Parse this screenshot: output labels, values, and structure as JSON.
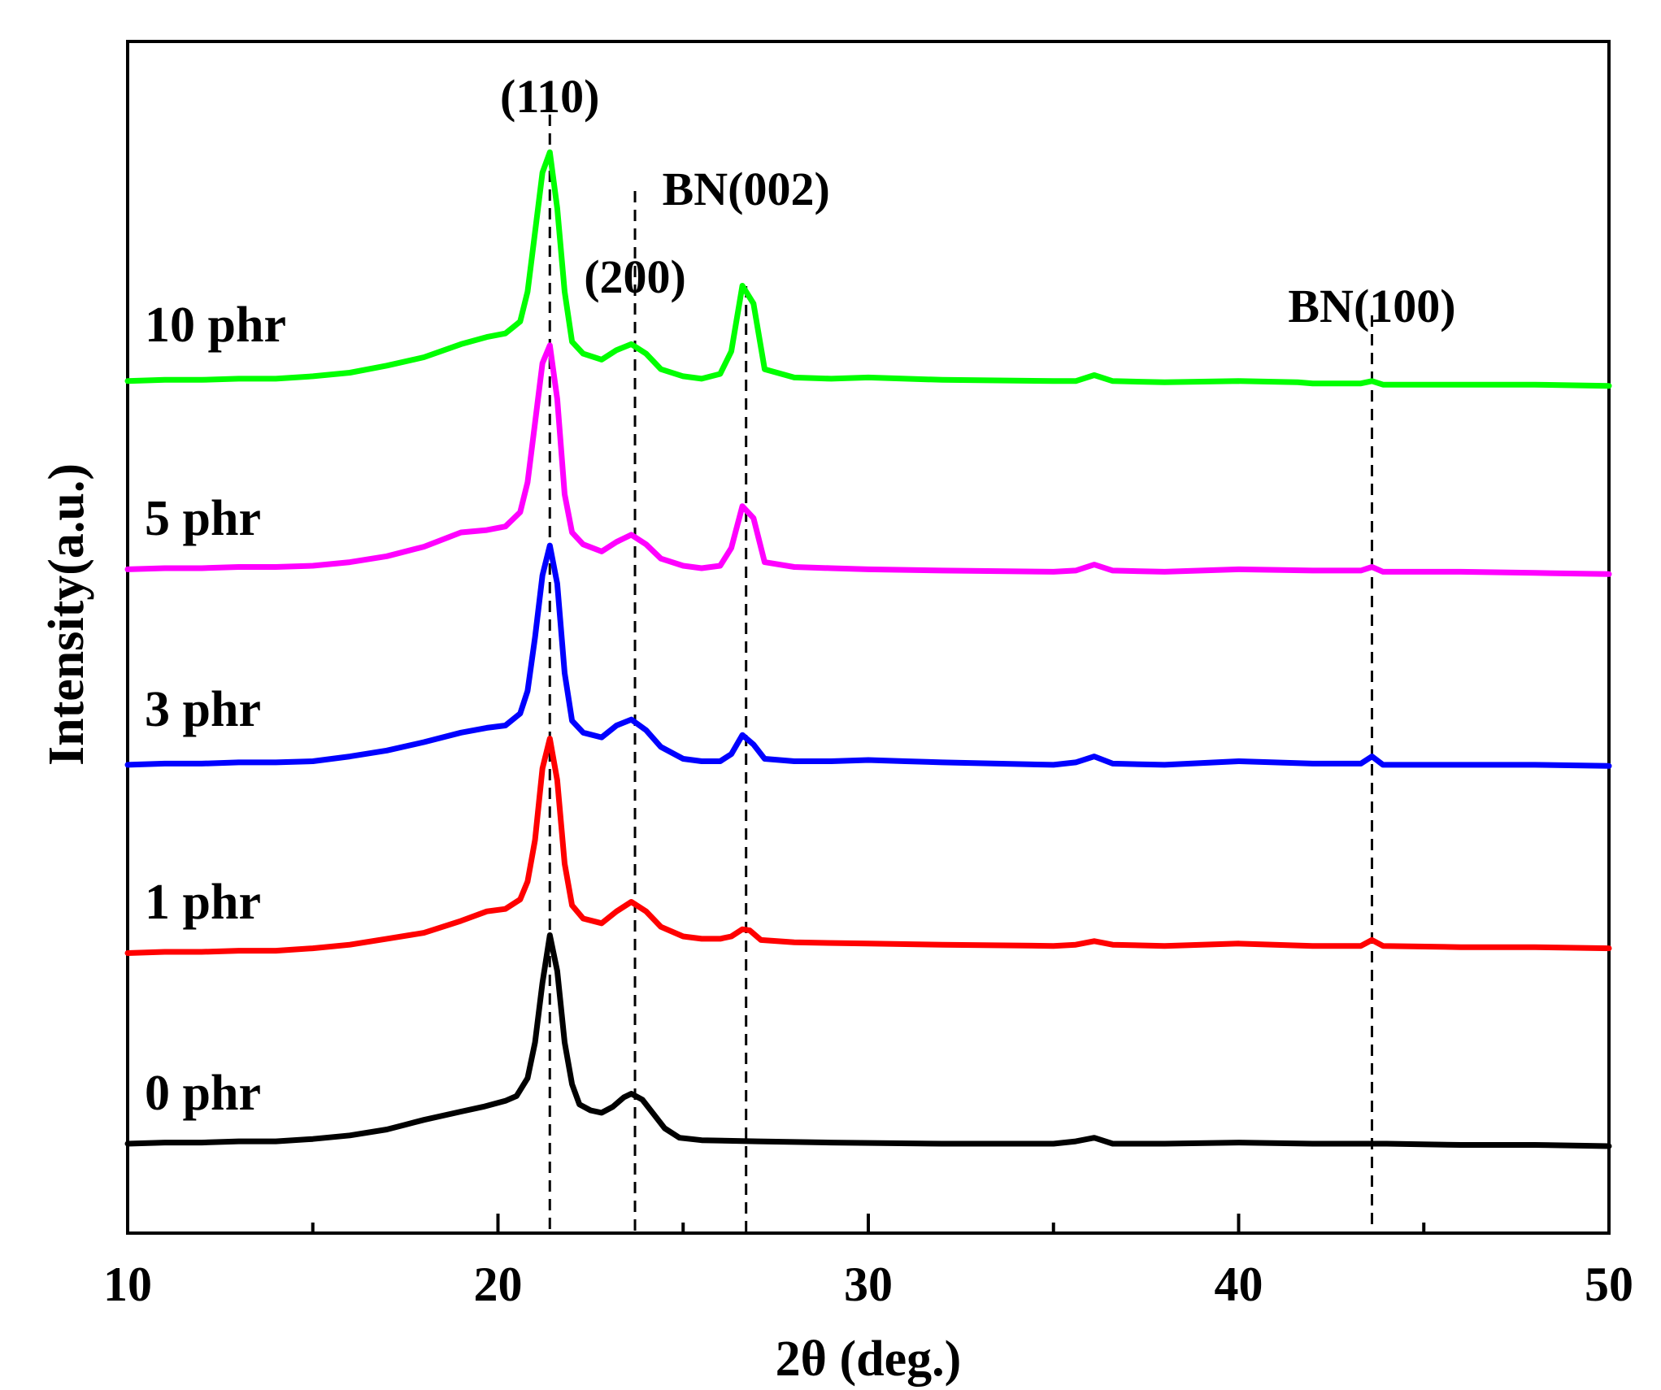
{
  "chart_data": {
    "type": "line",
    "title": "",
    "xlabel": "2θ (deg.)",
    "ylabel": "Intensity(a.u.)",
    "xlim": [
      10,
      50
    ],
    "ylim": [
      0,
      1.0
    ],
    "grid": false,
    "x_ticks": [
      10,
      20,
      30,
      40,
      50
    ],
    "x_tick_labels": [
      "10",
      "20",
      "30",
      "40",
      "50"
    ],
    "x_minor_ticks": [
      15,
      25,
      35,
      45
    ],
    "series": [
      {
        "name": "0 phr",
        "color": "#000000",
        "points": [
          [
            10,
            0.075
          ],
          [
            11,
            0.076
          ],
          [
            12,
            0.076
          ],
          [
            13,
            0.077
          ],
          [
            14,
            0.077
          ],
          [
            15,
            0.079
          ],
          [
            16,
            0.082
          ],
          [
            17,
            0.087
          ],
          [
            17.5,
            0.091
          ],
          [
            18,
            0.095
          ],
          [
            19,
            0.102
          ],
          [
            19.6,
            0.106
          ],
          [
            20.2,
            0.111
          ],
          [
            20.5,
            0.115
          ],
          [
            20.8,
            0.13
          ],
          [
            21.0,
            0.16
          ],
          [
            21.2,
            0.21
          ],
          [
            21.4,
            0.25
          ],
          [
            21.6,
            0.22
          ],
          [
            21.8,
            0.16
          ],
          [
            22.0,
            0.125
          ],
          [
            22.2,
            0.108
          ],
          [
            22.5,
            0.103
          ],
          [
            22.8,
            0.101
          ],
          [
            23.1,
            0.106
          ],
          [
            23.4,
            0.114
          ],
          [
            23.6,
            0.117
          ],
          [
            23.9,
            0.112
          ],
          [
            24.2,
            0.1
          ],
          [
            24.5,
            0.088
          ],
          [
            24.9,
            0.08
          ],
          [
            25.5,
            0.078
          ],
          [
            27,
            0.077
          ],
          [
            29,
            0.076
          ],
          [
            32,
            0.075
          ],
          [
            35,
            0.075
          ],
          [
            35.6,
            0.077
          ],
          [
            36.1,
            0.08
          ],
          [
            36.6,
            0.075
          ],
          [
            38,
            0.075
          ],
          [
            40,
            0.076
          ],
          [
            42,
            0.075
          ],
          [
            44,
            0.075
          ],
          [
            46,
            0.074
          ],
          [
            48,
            0.074
          ],
          [
            50,
            0.073
          ]
        ]
      },
      {
        "name": "1 phr",
        "color": "#ff0000",
        "points": [
          [
            10,
            0.235
          ],
          [
            11,
            0.236
          ],
          [
            12,
            0.236
          ],
          [
            13,
            0.237
          ],
          [
            14,
            0.237
          ],
          [
            15,
            0.239
          ],
          [
            16,
            0.242
          ],
          [
            17,
            0.247
          ],
          [
            18,
            0.252
          ],
          [
            19,
            0.262
          ],
          [
            19.7,
            0.27
          ],
          [
            20.2,
            0.272
          ],
          [
            20.6,
            0.28
          ],
          [
            20.8,
            0.295
          ],
          [
            21.0,
            0.33
          ],
          [
            21.2,
            0.39
          ],
          [
            21.4,
            0.415
          ],
          [
            21.6,
            0.38
          ],
          [
            21.8,
            0.31
          ],
          [
            22.0,
            0.275
          ],
          [
            22.3,
            0.264
          ],
          [
            22.8,
            0.26
          ],
          [
            23.2,
            0.27
          ],
          [
            23.6,
            0.278
          ],
          [
            24.0,
            0.27
          ],
          [
            24.4,
            0.257
          ],
          [
            25.0,
            0.249
          ],
          [
            25.5,
            0.247
          ],
          [
            26.0,
            0.247
          ],
          [
            26.3,
            0.249
          ],
          [
            26.6,
            0.255
          ],
          [
            26.8,
            0.254
          ],
          [
            27.1,
            0.246
          ],
          [
            28,
            0.244
          ],
          [
            30,
            0.243
          ],
          [
            32,
            0.242
          ],
          [
            35,
            0.241
          ],
          [
            35.6,
            0.242
          ],
          [
            36.1,
            0.245
          ],
          [
            36.6,
            0.242
          ],
          [
            38,
            0.241
          ],
          [
            40,
            0.243
          ],
          [
            42,
            0.241
          ],
          [
            43.3,
            0.241
          ],
          [
            43.6,
            0.246
          ],
          [
            43.9,
            0.241
          ],
          [
            46,
            0.24
          ],
          [
            48,
            0.24
          ],
          [
            50,
            0.239
          ]
        ]
      },
      {
        "name": "3 phr",
        "color": "#0000ff",
        "points": [
          [
            10,
            0.393
          ],
          [
            11,
            0.394
          ],
          [
            12,
            0.394
          ],
          [
            13,
            0.395
          ],
          [
            14,
            0.395
          ],
          [
            15,
            0.396
          ],
          [
            16,
            0.4
          ],
          [
            17,
            0.405
          ],
          [
            18,
            0.412
          ],
          [
            19,
            0.42
          ],
          [
            19.7,
            0.424
          ],
          [
            20.2,
            0.426
          ],
          [
            20.6,
            0.436
          ],
          [
            20.8,
            0.455
          ],
          [
            21.0,
            0.5
          ],
          [
            21.2,
            0.552
          ],
          [
            21.4,
            0.577
          ],
          [
            21.6,
            0.545
          ],
          [
            21.8,
            0.47
          ],
          [
            22.0,
            0.43
          ],
          [
            22.3,
            0.42
          ],
          [
            22.8,
            0.416
          ],
          [
            23.2,
            0.426
          ],
          [
            23.6,
            0.431
          ],
          [
            24.0,
            0.422
          ],
          [
            24.4,
            0.408
          ],
          [
            25.0,
            0.398
          ],
          [
            25.5,
            0.396
          ],
          [
            26.0,
            0.396
          ],
          [
            26.3,
            0.402
          ],
          [
            26.6,
            0.418
          ],
          [
            26.9,
            0.41
          ],
          [
            27.2,
            0.398
          ],
          [
            28,
            0.396
          ],
          [
            29,
            0.396
          ],
          [
            30,
            0.397
          ],
          [
            31,
            0.396
          ],
          [
            32,
            0.395
          ],
          [
            35,
            0.393
          ],
          [
            35.6,
            0.395
          ],
          [
            36.1,
            0.4
          ],
          [
            36.6,
            0.394
          ],
          [
            38,
            0.393
          ],
          [
            40,
            0.396
          ],
          [
            42,
            0.394
          ],
          [
            43.3,
            0.394
          ],
          [
            43.6,
            0.4
          ],
          [
            43.9,
            0.393
          ],
          [
            46,
            0.393
          ],
          [
            48,
            0.393
          ],
          [
            50,
            0.392
          ]
        ]
      },
      {
        "name": "5 phr",
        "color": "#ff00ff",
        "points": [
          [
            10,
            0.557
          ],
          [
            11,
            0.558
          ],
          [
            12,
            0.558
          ],
          [
            13,
            0.559
          ],
          [
            14,
            0.559
          ],
          [
            15,
            0.56
          ],
          [
            16,
            0.563
          ],
          [
            17,
            0.568
          ],
          [
            18,
            0.576
          ],
          [
            19,
            0.588
          ],
          [
            19.7,
            0.59
          ],
          [
            20.2,
            0.593
          ],
          [
            20.6,
            0.605
          ],
          [
            20.8,
            0.63
          ],
          [
            21.0,
            0.68
          ],
          [
            21.2,
            0.73
          ],
          [
            21.4,
            0.745
          ],
          [
            21.6,
            0.7
          ],
          [
            21.8,
            0.62
          ],
          [
            22.0,
            0.588
          ],
          [
            22.3,
            0.578
          ],
          [
            22.8,
            0.572
          ],
          [
            23.2,
            0.58
          ],
          [
            23.6,
            0.586
          ],
          [
            24.0,
            0.578
          ],
          [
            24.4,
            0.566
          ],
          [
            25.0,
            0.56
          ],
          [
            25.5,
            0.558
          ],
          [
            26.0,
            0.56
          ],
          [
            26.3,
            0.575
          ],
          [
            26.6,
            0.61
          ],
          [
            26.9,
            0.6
          ],
          [
            27.2,
            0.563
          ],
          [
            28,
            0.559
          ],
          [
            29,
            0.558
          ],
          [
            30,
            0.557
          ],
          [
            32,
            0.556
          ],
          [
            35,
            0.555
          ],
          [
            35.6,
            0.556
          ],
          [
            36.1,
            0.561
          ],
          [
            36.6,
            0.556
          ],
          [
            38,
            0.555
          ],
          [
            40,
            0.557
          ],
          [
            42,
            0.556
          ],
          [
            43.3,
            0.556
          ],
          [
            43.6,
            0.559
          ],
          [
            43.9,
            0.555
          ],
          [
            46,
            0.555
          ],
          [
            48,
            0.554
          ],
          [
            50,
            0.553
          ]
        ]
      },
      {
        "name": "10 phr",
        "color": "#00ff00",
        "points": [
          [
            10,
            0.715
          ],
          [
            11,
            0.716
          ],
          [
            12,
            0.716
          ],
          [
            13,
            0.717
          ],
          [
            14,
            0.717
          ],
          [
            15,
            0.719
          ],
          [
            16,
            0.722
          ],
          [
            17,
            0.728
          ],
          [
            18,
            0.735
          ],
          [
            19,
            0.746
          ],
          [
            19.7,
            0.752
          ],
          [
            20.2,
            0.755
          ],
          [
            20.6,
            0.765
          ],
          [
            20.8,
            0.79
          ],
          [
            21.0,
            0.84
          ],
          [
            21.2,
            0.89
          ],
          [
            21.4,
            0.907
          ],
          [
            21.6,
            0.86
          ],
          [
            21.8,
            0.79
          ],
          [
            22.0,
            0.748
          ],
          [
            22.3,
            0.738
          ],
          [
            22.8,
            0.733
          ],
          [
            23.2,
            0.741
          ],
          [
            23.6,
            0.746
          ],
          [
            24.0,
            0.738
          ],
          [
            24.4,
            0.725
          ],
          [
            25.0,
            0.719
          ],
          [
            25.5,
            0.717
          ],
          [
            26.0,
            0.721
          ],
          [
            26.3,
            0.74
          ],
          [
            26.6,
            0.795
          ],
          [
            26.9,
            0.78
          ],
          [
            27.2,
            0.725
          ],
          [
            28,
            0.718
          ],
          [
            29,
            0.717
          ],
          [
            30,
            0.718
          ],
          [
            31,
            0.717
          ],
          [
            32,
            0.716
          ],
          [
            35,
            0.715
          ],
          [
            35.6,
            0.715
          ],
          [
            36.1,
            0.72
          ],
          [
            36.6,
            0.715
          ],
          [
            38,
            0.714
          ],
          [
            40,
            0.715
          ],
          [
            41.6,
            0.714
          ],
          [
            42,
            0.713
          ],
          [
            43.3,
            0.713
          ],
          [
            43.6,
            0.715
          ],
          [
            43.9,
            0.712
          ],
          [
            46,
            0.712
          ],
          [
            48,
            0.712
          ],
          [
            50,
            0.711
          ]
        ]
      }
    ],
    "reference_lines": [
      {
        "x": 21.4,
        "label": "(110)"
      },
      {
        "x": 23.7,
        "label": "(200)"
      },
      {
        "x": 26.7,
        "label": "BN(002)"
      },
      {
        "x": 43.6,
        "label": "BN(100)"
      }
    ]
  }
}
